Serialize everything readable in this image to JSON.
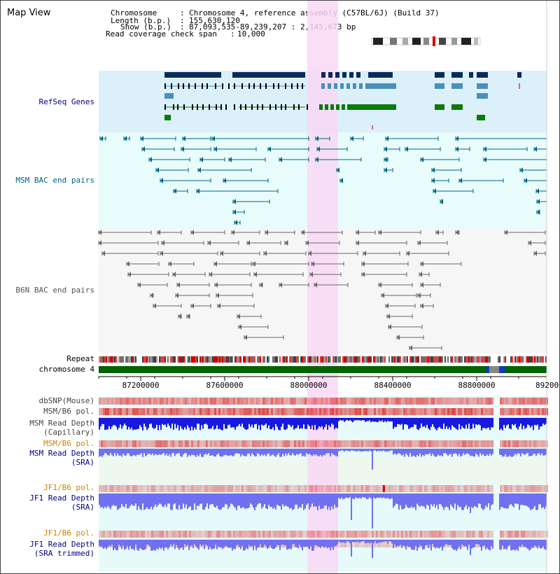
{
  "page_title": "Map View",
  "header": {
    "chromosome_key": "Chromosome",
    "chromosome_value": "Chromosome 4, reference assembly (C57BL/6J) (Build 37)",
    "length_key": "Length (b.p.)",
    "length_value": "155,630,120",
    "show_key": "Show (b.p.)",
    "show_value": "87,093,535-89,239,207 : 2,145,673 bp",
    "coverage_key": "Read coverage check span",
    "coverage_value": "10,000"
  },
  "tracks": {
    "refseq": "RefSeq Genes",
    "msm_bac": "MSM BAC end pairs",
    "b6n_bac": "B6N BAC end pairs",
    "repeat": "Repeat",
    "chromosome": "chromosome 4",
    "dbsnp": "dbSNP(Mouse)",
    "msm_b6_pol_1": "MSM/B6 pol.",
    "msm_depth_cap_1": "MSM Read Depth",
    "msm_depth_cap_2": "(Capillary)",
    "msm_b6_pol_2": "MSM/B6 pol.",
    "msm_depth_sra_1": "MSM Read Depth",
    "msm_depth_sra_2": "(SRA)",
    "jf1_b6_pol_1": "JF1/B6 pol.",
    "jf1_depth_sra_1": "JF1 Read Depth",
    "jf1_depth_sra_2": "(SRA)",
    "jf1_b6_pol_2": "JF1/B6 pol.",
    "jf1_depth_trim_1": "JF1 Read Depth",
    "jf1_depth_trim_2": "(SRA trimmed)"
  },
  "axis": {
    "ticks": [
      "87200000",
      "87600000",
      "88000000",
      "88400000",
      "88800000",
      "89200000"
    ]
  },
  "colors": {
    "refseq_bg": "#dcf0fa",
    "msm_bg": "#e8fcfc",
    "b6n_bg": "#f6f6f6",
    "lower_bg": "#e6fafa",
    "highlight": "#f8d8f4",
    "label_navy": "#000080",
    "label_teal": "#006480",
    "label_gray": "#555555",
    "label_orange": "#d08000",
    "depth_dark": "#0000e0",
    "depth_light": "#7070f0",
    "chrom_green": "#006400",
    "gene_navy": "#0a2a5a",
    "gene_light": "#4a90b8",
    "gene_green": "#0a7a0a"
  },
  "icons": {
    "chromosome_ideogram": "chromosome-ideogram-icon"
  }
}
